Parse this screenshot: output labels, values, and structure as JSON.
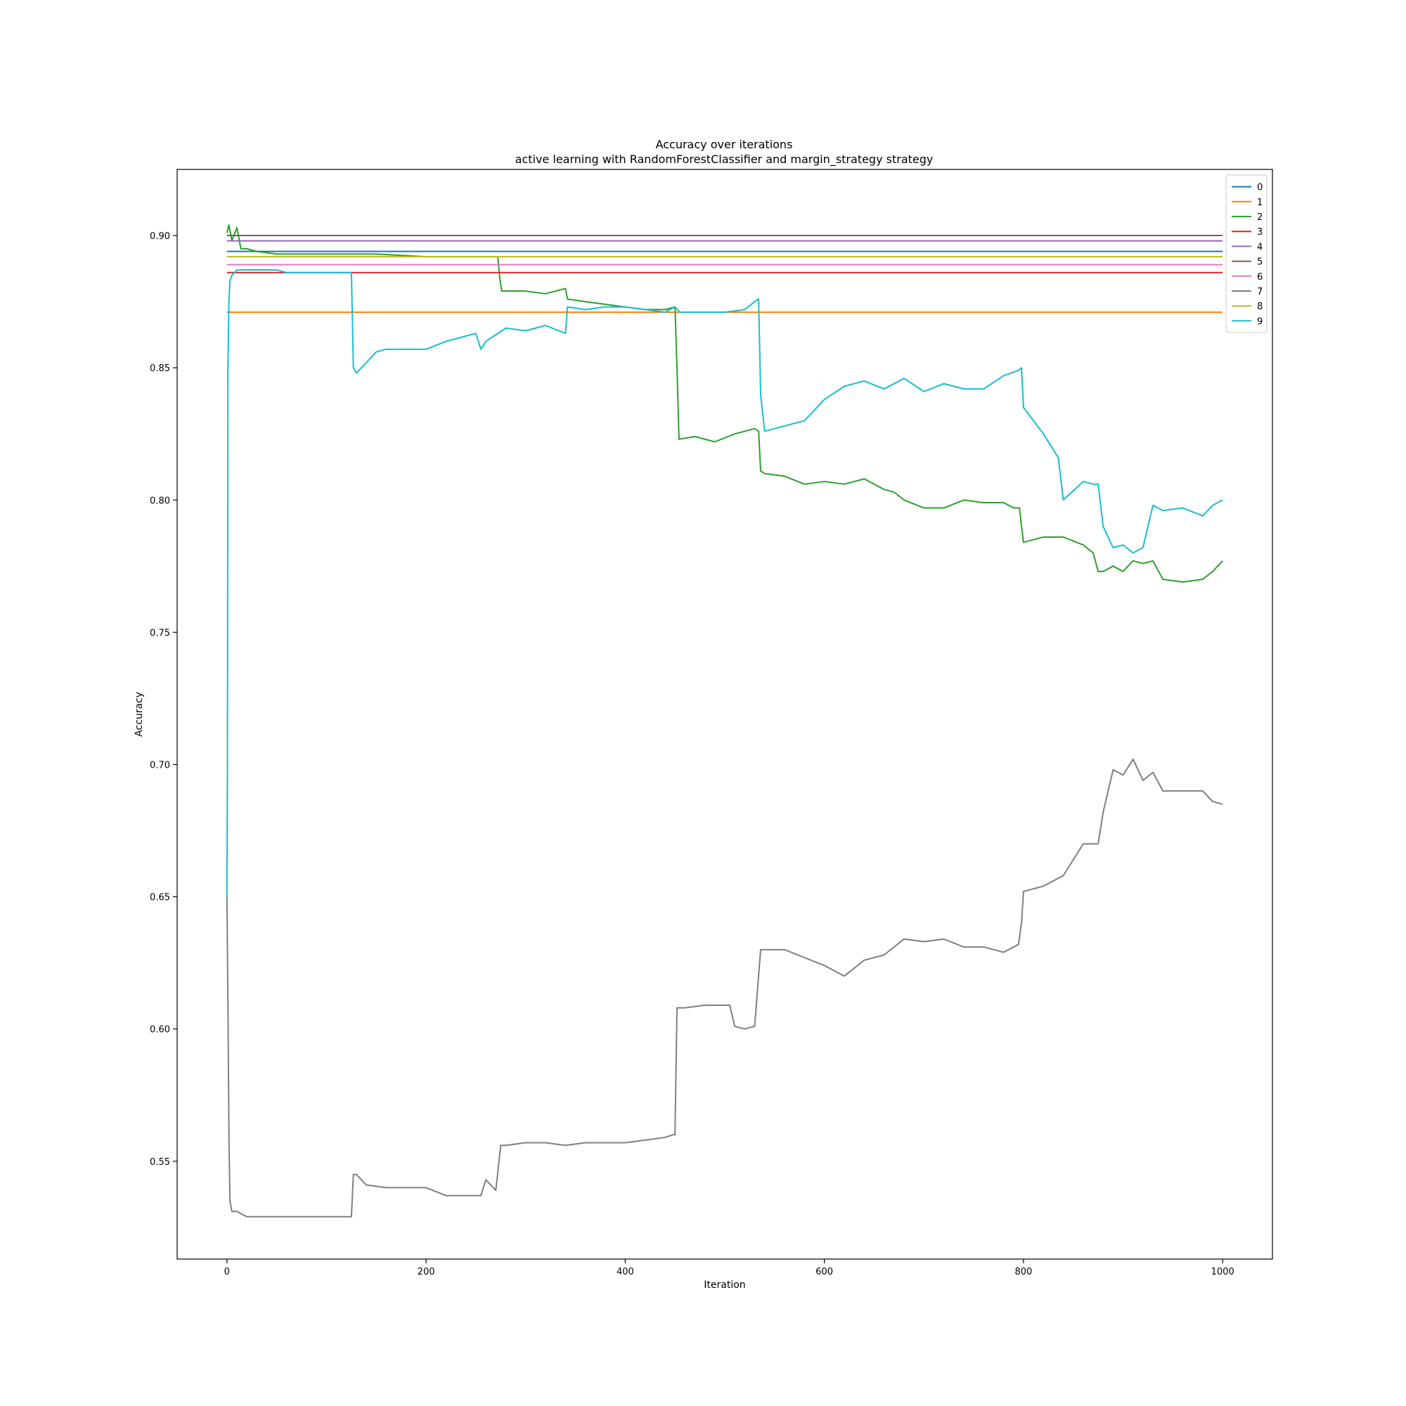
{
  "chart_data": {
    "type": "line",
    "title": "Accuracy over iterations",
    "subtitle": "active learning with RandomForestClassifier and margin_strategy strategy",
    "xlabel": "Iteration",
    "ylabel": "Accuracy",
    "xlim": [
      -50,
      1050
    ],
    "ylim": [
      0.513,
      0.925
    ],
    "xticks": [
      0,
      200,
      400,
      600,
      800,
      1000
    ],
    "xtick_labels": [
      "0",
      "200",
      "400",
      "600",
      "800",
      "1000"
    ],
    "yticks": [
      0.55,
      0.6,
      0.65,
      0.7,
      0.75,
      0.8,
      0.85,
      0.9
    ],
    "ytick_labels": [
      "0.55",
      "0.60",
      "0.65",
      "0.70",
      "0.75",
      "0.80",
      "0.85",
      "0.90"
    ],
    "grid": false,
    "legend_position": "top-right",
    "series": [
      {
        "name": "0",
        "color": "#1f77b4",
        "x": [
          0,
          1000
        ],
        "y": [
          0.894,
          0.894
        ]
      },
      {
        "name": "1",
        "color": "#ff7f0e",
        "x": [
          0,
          1000
        ],
        "y": [
          0.871,
          0.871
        ]
      },
      {
        "name": "2",
        "color": "#2ca02c",
        "x": [
          0,
          2,
          5,
          8,
          10,
          12,
          14,
          20,
          30,
          50,
          100,
          150,
          200,
          250,
          272,
          274,
          276,
          300,
          320,
          340,
          342,
          360,
          380,
          400,
          420,
          440,
          450,
          452,
          454,
          470,
          490,
          510,
          520,
          530,
          534,
          536,
          540,
          560,
          580,
          600,
          620,
          640,
          660,
          670,
          680,
          700,
          720,
          740,
          760,
          780,
          790,
          796,
          798,
          800,
          820,
          840,
          860,
          870,
          875,
          880,
          890,
          900,
          910,
          920,
          930,
          940,
          960,
          980,
          990,
          1000
        ],
        "y": [
          0.901,
          0.904,
          0.898,
          0.901,
          0.903,
          0.899,
          0.895,
          0.895,
          0.894,
          0.893,
          0.893,
          0.893,
          0.892,
          0.892,
          0.892,
          0.884,
          0.879,
          0.879,
          0.878,
          0.88,
          0.876,
          0.875,
          0.874,
          0.873,
          0.872,
          0.872,
          0.873,
          0.85,
          0.823,
          0.824,
          0.822,
          0.825,
          0.826,
          0.827,
          0.826,
          0.811,
          0.81,
          0.809,
          0.806,
          0.807,
          0.806,
          0.808,
          0.804,
          0.803,
          0.8,
          0.797,
          0.797,
          0.8,
          0.799,
          0.799,
          0.797,
          0.797,
          0.79,
          0.784,
          0.786,
          0.786,
          0.783,
          0.78,
          0.773,
          0.773,
          0.775,
          0.773,
          0.777,
          0.776,
          0.777,
          0.77,
          0.769,
          0.77,
          0.773,
          0.777
        ]
      },
      {
        "name": "3",
        "color": "#d62728",
        "x": [
          0,
          1000
        ],
        "y": [
          0.886,
          0.886
        ]
      },
      {
        "name": "4",
        "color": "#9467bd",
        "x": [
          0,
          1000
        ],
        "y": [
          0.898,
          0.898
        ]
      },
      {
        "name": "5",
        "color": "#8c564b",
        "x": [
          0,
          1000
        ],
        "y": [
          0.9,
          0.9
        ]
      },
      {
        "name": "6",
        "color": "#e377c2",
        "x": [
          0,
          1000
        ],
        "y": [
          0.889,
          0.889
        ]
      },
      {
        "name": "7",
        "color": "#7f7f7f",
        "x": [
          0,
          1,
          2,
          3,
          5,
          10,
          20,
          50,
          100,
          125,
          127,
          130,
          140,
          160,
          180,
          200,
          220,
          240,
          255,
          260,
          270,
          275,
          280,
          300,
          320,
          340,
          360,
          380,
          400,
          420,
          440,
          448,
          450,
          452,
          460,
          480,
          500,
          505,
          510,
          520,
          530,
          536,
          540,
          560,
          580,
          600,
          620,
          640,
          660,
          680,
          700,
          720,
          740,
          760,
          780,
          795,
          798,
          800,
          820,
          840,
          860,
          875,
          880,
          890,
          900,
          910,
          920,
          930,
          940,
          960,
          980,
          990,
          1000
        ],
        "y": [
          0.65,
          0.61,
          0.56,
          0.535,
          0.531,
          0.531,
          0.529,
          0.529,
          0.529,
          0.529,
          0.545,
          0.545,
          0.541,
          0.54,
          0.54,
          0.54,
          0.537,
          0.537,
          0.537,
          0.543,
          0.539,
          0.556,
          0.556,
          0.557,
          0.557,
          0.556,
          0.557,
          0.557,
          0.557,
          0.558,
          0.559,
          0.56,
          0.56,
          0.608,
          0.608,
          0.609,
          0.609,
          0.609,
          0.601,
          0.6,
          0.601,
          0.63,
          0.63,
          0.63,
          0.627,
          0.624,
          0.62,
          0.626,
          0.628,
          0.634,
          0.633,
          0.634,
          0.631,
          0.631,
          0.629,
          0.632,
          0.64,
          0.652,
          0.654,
          0.658,
          0.67,
          0.67,
          0.682,
          0.698,
          0.696,
          0.702,
          0.694,
          0.697,
          0.69,
          0.69,
          0.69,
          0.686,
          0.685
        ]
      },
      {
        "name": "8",
        "color": "#bcbd22",
        "x": [
          0,
          1000
        ],
        "y": [
          0.892,
          0.892
        ]
      },
      {
        "name": "9",
        "color": "#17becf",
        "x": [
          0,
          0.5,
          1,
          2,
          3,
          5,
          8,
          10,
          30,
          50,
          60,
          80,
          100,
          125,
          127,
          130,
          140,
          150,
          160,
          180,
          200,
          220,
          240,
          250,
          255,
          260,
          280,
          300,
          320,
          340,
          342,
          360,
          380,
          400,
          420,
          440,
          450,
          455,
          460,
          480,
          500,
          520,
          530,
          534,
          536,
          540,
          560,
          580,
          600,
          620,
          640,
          660,
          680,
          700,
          720,
          740,
          760,
          780,
          795,
          798,
          800,
          820,
          835,
          840,
          860,
          870,
          875,
          880,
          890,
          900,
          910,
          920,
          930,
          940,
          960,
          980,
          990,
          1000
        ],
        "y": [
          0.65,
          0.698,
          0.85,
          0.875,
          0.883,
          0.885,
          0.886,
          0.887,
          0.887,
          0.887,
          0.886,
          0.886,
          0.886,
          0.886,
          0.85,
          0.848,
          0.852,
          0.856,
          0.857,
          0.857,
          0.857,
          0.86,
          0.862,
          0.863,
          0.857,
          0.86,
          0.865,
          0.864,
          0.866,
          0.863,
          0.873,
          0.872,
          0.873,
          0.873,
          0.872,
          0.871,
          0.873,
          0.871,
          0.871,
          0.871,
          0.871,
          0.872,
          0.875,
          0.876,
          0.84,
          0.826,
          0.828,
          0.83,
          0.838,
          0.843,
          0.845,
          0.842,
          0.846,
          0.841,
          0.844,
          0.842,
          0.842,
          0.847,
          0.849,
          0.85,
          0.835,
          0.825,
          0.816,
          0.8,
          0.807,
          0.806,
          0.806,
          0.79,
          0.782,
          0.783,
          0.78,
          0.782,
          0.798,
          0.796,
          0.797,
          0.794,
          0.798,
          0.8
        ]
      }
    ]
  }
}
